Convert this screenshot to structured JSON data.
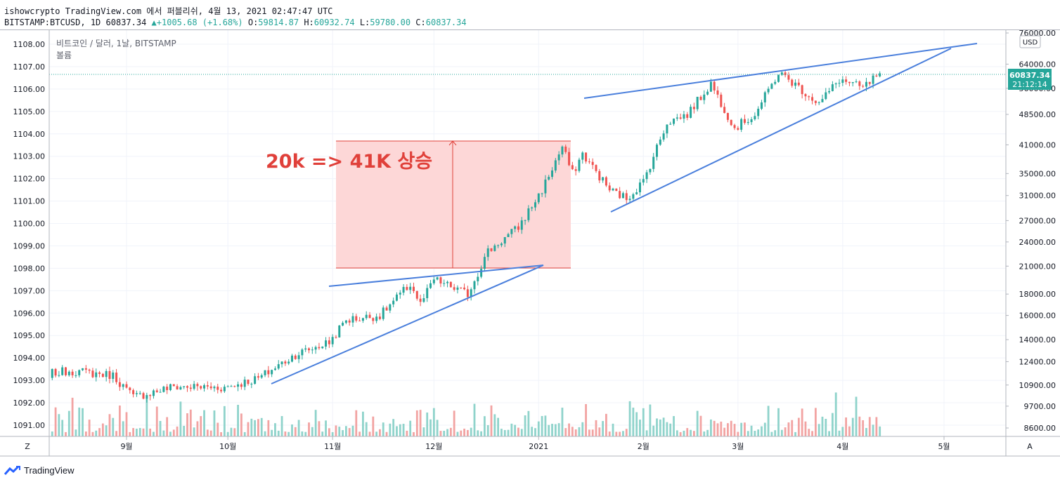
{
  "header": {
    "line1": "ishowcrypto TradingView.com 에서 퍼블리쉬, 4월 13, 2021 02:47:47 UTC",
    "symbol": "BITSTAMP:BTCUSD, 1D",
    "last": "60837.34",
    "change": "+1005.68 (+1.68%)",
    "o_label": "O:",
    "o": "59814.87",
    "h_label": "H:",
    "h": "60932.74",
    "l_label": "L:",
    "l": "59780.00",
    "c_label": "C:",
    "c": "60837.34"
  },
  "legend": {
    "title": "비트코인 / 달러, 1날, BITSTAMP",
    "volume": "볼륨"
  },
  "footer": {
    "brand": "TradingView"
  },
  "colors": {
    "up": "#26a69a",
    "down": "#ef5350",
    "trendline": "#4a7fdc",
    "annotation": "#e0403a",
    "box_fill": "#fdd7d7"
  },
  "chart_data": {
    "type": "candlestick",
    "x_ticks": [
      "9월",
      "10월",
      "11월",
      "12월",
      "2021",
      "2월",
      "3월",
      "4월",
      "5월"
    ],
    "left_axis_ticks": [
      "1108.00",
      "1107.00",
      "1106.00",
      "1105.00",
      "1104.00",
      "1103.00",
      "1102.00",
      "1101.00",
      "1100.00",
      "1099.00",
      "1098.00",
      "1097.00",
      "1096.00",
      "1095.00",
      "1094.00",
      "1093.00",
      "1092.00",
      "1091.00"
    ],
    "right_axis_ticks": [
      "76000.00",
      "64000.00",
      "56000.00",
      "48500.00",
      "41000.00",
      "35000.00",
      "31000.00",
      "27000.00",
      "24000.00",
      "21000.00",
      "18000.00",
      "16000.00",
      "14000.00",
      "12400.00",
      "10900.00",
      "9700.00",
      "8600.00"
    ],
    "right_axis_scale": "log",
    "currency": "USD",
    "price_label": "60837.34",
    "countdown": "21:12:14",
    "annotation": "20k => 41K 상승",
    "close_anchors": [
      [
        "2020-08-01",
        11300
      ],
      [
        "2020-08-15",
        11800
      ],
      [
        "2020-08-28",
        11500
      ],
      [
        "2020-09-03",
        10200
      ],
      [
        "2020-09-15",
        10800
      ],
      [
        "2020-09-30",
        10750
      ],
      [
        "2020-10-10",
        11300
      ],
      [
        "2020-10-21",
        12900
      ],
      [
        "2020-10-31",
        13800
      ],
      [
        "2020-11-05",
        15600
      ],
      [
        "2020-11-15",
        16000
      ],
      [
        "2020-11-24",
        19000
      ],
      [
        "2020-11-27",
        17000
      ],
      [
        "2020-12-01",
        19500
      ],
      [
        "2020-12-11",
        18000
      ],
      [
        "2020-12-17",
        22800
      ],
      [
        "2020-12-26",
        26000
      ],
      [
        "2021-01-02",
        32000
      ],
      [
        "2021-01-08",
        40500
      ],
      [
        "2021-01-11",
        35000
      ],
      [
        "2021-01-14",
        39000
      ],
      [
        "2021-01-22",
        32000
      ],
      [
        "2021-01-27",
        30500
      ],
      [
        "2021-02-01",
        33500
      ],
      [
        "2021-02-08",
        46500
      ],
      [
        "2021-02-14",
        48500
      ],
      [
        "2021-02-21",
        57500
      ],
      [
        "2021-02-28",
        45000
      ],
      [
        "2021-03-06",
        48500
      ],
      [
        "2021-03-13",
        61000
      ],
      [
        "2021-03-17",
        58000
      ],
      [
        "2021-03-25",
        51500
      ],
      [
        "2021-03-31",
        58800
      ],
      [
        "2021-04-07",
        56000
      ],
      [
        "2021-04-12",
        60837
      ]
    ]
  }
}
